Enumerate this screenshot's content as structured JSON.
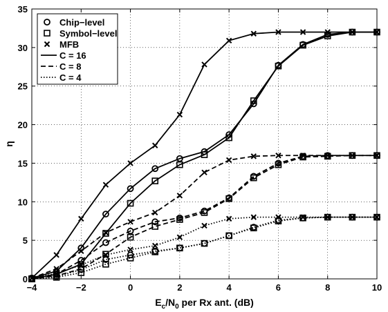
{
  "chart_data": {
    "type": "line",
    "xlabel_parts": [
      "E",
      "c",
      "/N",
      "0",
      " per Rx ant. (dB)"
    ],
    "ylabel": "η",
    "xlim": [
      -4,
      10
    ],
    "ylim": [
      0,
      35
    ],
    "xticks": [
      -4,
      -2,
      0,
      2,
      4,
      6,
      8,
      10
    ],
    "yticks": [
      0,
      5,
      10,
      15,
      20,
      25,
      30,
      35
    ],
    "grid": true,
    "legend_position": "top-left",
    "legend_markers": [
      {
        "label": "Chip−level",
        "marker": "circle"
      },
      {
        "label": "Symbol−level",
        "marker": "square"
      },
      {
        "label": "MFB",
        "marker": "x"
      }
    ],
    "legend_lines": [
      {
        "label": "C = 16",
        "dash": "solid"
      },
      {
        "label": "C = 8",
        "dash": "dashed"
      },
      {
        "label": "C = 4",
        "dash": "dotted"
      }
    ],
    "x": [
      -4,
      -3,
      -2,
      -1,
      0,
      1,
      2,
      3,
      4,
      5,
      6,
      7,
      8,
      9,
      10
    ],
    "series": [
      {
        "group": "C = 16",
        "method": "MFB",
        "marker": "x",
        "dash": "solid",
        "values": [
          0.1,
          3.1,
          7.8,
          12.2,
          15.0,
          17.3,
          21.3,
          27.8,
          30.9,
          31.8,
          32.0,
          32.0,
          32.0,
          32.0,
          32.0
        ]
      },
      {
        "group": "C = 16",
        "method": "Chip-level",
        "marker": "circle",
        "dash": "solid",
        "values": [
          0.1,
          1.0,
          4.0,
          8.4,
          11.7,
          14.3,
          15.6,
          16.5,
          18.7,
          22.7,
          27.7,
          30.4,
          31.7,
          32.0,
          32.0
        ]
      },
      {
        "group": "C = 16",
        "method": "Symbol-level",
        "marker": "square",
        "dash": "solid",
        "values": [
          0.0,
          0.6,
          1.9,
          5.9,
          9.8,
          12.7,
          14.8,
          16.1,
          18.3,
          23.1,
          27.6,
          30.3,
          31.5,
          32.0,
          32.0
        ]
      },
      {
        "group": "C = 8",
        "method": "MFB",
        "marker": "x",
        "dash": "dashed",
        "values": [
          0.1,
          1.3,
          3.6,
          6.0,
          7.4,
          8.6,
          10.8,
          13.8,
          15.4,
          15.9,
          16.0,
          16.0,
          16.0,
          16.0,
          16.0
        ]
      },
      {
        "group": "C = 8",
        "method": "Chip-level",
        "marker": "circle",
        "dash": "dashed",
        "values": [
          0.1,
          0.6,
          2.4,
          4.7,
          6.2,
          7.4,
          7.9,
          8.8,
          10.5,
          13.3,
          15.0,
          15.9,
          16.0,
          16.0,
          16.0
        ]
      },
      {
        "group": "C = 8",
        "method": "Symbol-level",
        "marker": "square",
        "dash": "dashed",
        "values": [
          0.0,
          0.4,
          1.3,
          3.2,
          5.4,
          6.8,
          7.7,
          8.6,
          10.4,
          13.1,
          14.8,
          15.8,
          15.9,
          16.0,
          16.0
        ]
      },
      {
        "group": "C = 4",
        "method": "MFB",
        "marker": "x",
        "dash": "dotted",
        "values": [
          0.1,
          0.7,
          1.8,
          3.1,
          3.8,
          4.3,
          5.4,
          6.9,
          7.8,
          8.0,
          8.0,
          8.0,
          8.0,
          8.0,
          8.0
        ]
      },
      {
        "group": "C = 4",
        "method": "Chip-level",
        "marker": "circle",
        "dash": "dotted",
        "values": [
          0.0,
          0.3,
          1.2,
          2.5,
          3.1,
          3.6,
          4.0,
          4.6,
          5.6,
          6.7,
          7.6,
          7.9,
          8.0,
          8.0,
          8.0
        ]
      },
      {
        "group": "C = 4",
        "method": "Symbol-level",
        "marker": "square",
        "dash": "dotted",
        "values": [
          0.0,
          0.2,
          0.8,
          1.9,
          2.7,
          3.5,
          4.0,
          4.6,
          5.6,
          6.6,
          7.5,
          7.9,
          8.0,
          8.0,
          8.0
        ]
      }
    ]
  }
}
